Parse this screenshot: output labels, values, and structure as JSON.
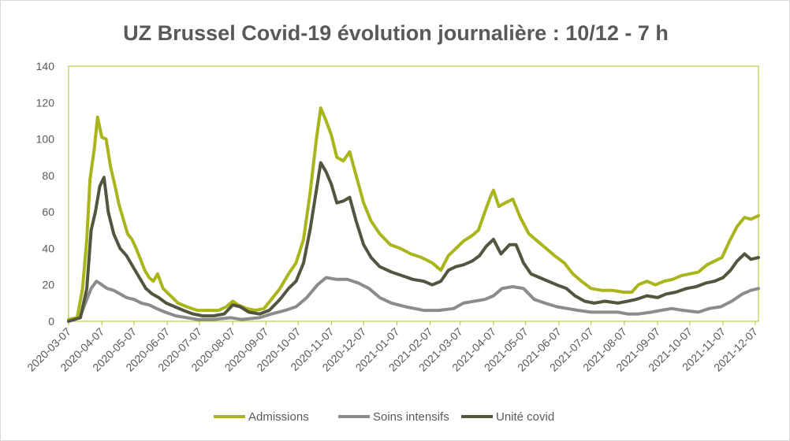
{
  "chart_data": {
    "type": "line",
    "title": "UZ Brussel Covid-19 évolution journalière : 10/12 - 7 h",
    "xlabel": "",
    "ylabel": "",
    "ylim": [
      0,
      140
    ],
    "yticks": [
      "0",
      "20",
      "40",
      "60",
      "80",
      "100",
      "120",
      "140"
    ],
    "x_range": [
      "2020-03-07",
      "2021-12-10"
    ],
    "x_tick_labels": [
      "2020-03-07",
      "2020-04-07",
      "2020-05-07",
      "2020-06-07",
      "2020-07-07",
      "2020-08-07",
      "2020-09-07",
      "2020-10-07",
      "2020-11-07",
      "2020-12-07",
      "2021-01-07",
      "2021-02-07",
      "2021-03-07",
      "2021-04-07",
      "2021-05-07",
      "2021-06-07",
      "2021-07-07",
      "2021-08-07",
      "2021-09-07",
      "2021-10-07",
      "2021-11-07",
      "2021-12-07"
    ],
    "grid": false,
    "legend_position": "bottom",
    "series": [
      {
        "name": "Admissions",
        "color": "#a9b51a",
        "points": [
          [
            "2020-03-07",
            1
          ],
          [
            "2020-03-15",
            2
          ],
          [
            "2020-03-20",
            18
          ],
          [
            "2020-03-24",
            45
          ],
          [
            "2020-03-27",
            78
          ],
          [
            "2020-03-31",
            95
          ],
          [
            "2020-04-03",
            112
          ],
          [
            "2020-04-07",
            101
          ],
          [
            "2020-04-11",
            100
          ],
          [
            "2020-04-15",
            85
          ],
          [
            "2020-04-19",
            75
          ],
          [
            "2020-04-23",
            64
          ],
          [
            "2020-04-27",
            56
          ],
          [
            "2020-05-01",
            48
          ],
          [
            "2020-05-05",
            45
          ],
          [
            "2020-05-09",
            40
          ],
          [
            "2020-05-13",
            34
          ],
          [
            "2020-05-17",
            28
          ],
          [
            "2020-05-21",
            24
          ],
          [
            "2020-05-25",
            22
          ],
          [
            "2020-05-29",
            26
          ],
          [
            "2020-06-03",
            18
          ],
          [
            "2020-06-10",
            14
          ],
          [
            "2020-06-17",
            10
          ],
          [
            "2020-06-25",
            8
          ],
          [
            "2020-07-05",
            6
          ],
          [
            "2020-07-15",
            6
          ],
          [
            "2020-07-25",
            6
          ],
          [
            "2020-08-01",
            8
          ],
          [
            "2020-08-07",
            11
          ],
          [
            "2020-08-12",
            9
          ],
          [
            "2020-08-20",
            7
          ],
          [
            "2020-08-28",
            6
          ],
          [
            "2020-09-05",
            7
          ],
          [
            "2020-09-12",
            12
          ],
          [
            "2020-09-20",
            18
          ],
          [
            "2020-09-28",
            26
          ],
          [
            "2020-10-05",
            32
          ],
          [
            "2020-10-12",
            45
          ],
          [
            "2020-10-18",
            70
          ],
          [
            "2020-10-24",
            100
          ],
          [
            "2020-10-28",
            117
          ],
          [
            "2020-11-02",
            110
          ],
          [
            "2020-11-07",
            102
          ],
          [
            "2020-11-12",
            90
          ],
          [
            "2020-11-18",
            88
          ],
          [
            "2020-11-24",
            93
          ],
          [
            "2020-11-30",
            80
          ],
          [
            "2020-12-07",
            65
          ],
          [
            "2020-12-14",
            55
          ],
          [
            "2020-12-22",
            48
          ],
          [
            "2021-01-01",
            42
          ],
          [
            "2021-01-10",
            40
          ],
          [
            "2021-01-20",
            37
          ],
          [
            "2021-01-30",
            35
          ],
          [
            "2021-02-09",
            32
          ],
          [
            "2021-02-17",
            28
          ],
          [
            "2021-02-24",
            36
          ],
          [
            "2021-03-03",
            40
          ],
          [
            "2021-03-10",
            44
          ],
          [
            "2021-03-18",
            47
          ],
          [
            "2021-03-24",
            50
          ],
          [
            "2021-03-30",
            60
          ],
          [
            "2021-04-04",
            68
          ],
          [
            "2021-04-07",
            72
          ],
          [
            "2021-04-12",
            63
          ],
          [
            "2021-04-18",
            65
          ],
          [
            "2021-04-25",
            67
          ],
          [
            "2021-05-02",
            57
          ],
          [
            "2021-05-10",
            48
          ],
          [
            "2021-05-18",
            44
          ],
          [
            "2021-05-26",
            40
          ],
          [
            "2021-06-03",
            36
          ],
          [
            "2021-06-12",
            32
          ],
          [
            "2021-06-20",
            26
          ],
          [
            "2021-06-28",
            22
          ],
          [
            "2021-07-07",
            18
          ],
          [
            "2021-07-17",
            17
          ],
          [
            "2021-07-27",
            17
          ],
          [
            "2021-08-06",
            16
          ],
          [
            "2021-08-14",
            16
          ],
          [
            "2021-08-20",
            20
          ],
          [
            "2021-08-28",
            22
          ],
          [
            "2021-09-05",
            20
          ],
          [
            "2021-09-13",
            22
          ],
          [
            "2021-09-21",
            23
          ],
          [
            "2021-09-29",
            25
          ],
          [
            "2021-10-07",
            26
          ],
          [
            "2021-10-15",
            27
          ],
          [
            "2021-10-23",
            31
          ],
          [
            "2021-10-30",
            33
          ],
          [
            "2021-11-06",
            35
          ],
          [
            "2021-11-13",
            44
          ],
          [
            "2021-11-20",
            52
          ],
          [
            "2021-11-27",
            57
          ],
          [
            "2021-12-03",
            56
          ],
          [
            "2021-12-10",
            58
          ]
        ]
      },
      {
        "name": "Soins intensifs",
        "color": "#8c8c8c",
        "points": [
          [
            "2020-03-07",
            0
          ],
          [
            "2020-03-18",
            3
          ],
          [
            "2020-03-24",
            12
          ],
          [
            "2020-03-28",
            18
          ],
          [
            "2020-04-02",
            22
          ],
          [
            "2020-04-07",
            20
          ],
          [
            "2020-04-12",
            18
          ],
          [
            "2020-04-18",
            17
          ],
          [
            "2020-04-24",
            15
          ],
          [
            "2020-04-30",
            13
          ],
          [
            "2020-05-07",
            12
          ],
          [
            "2020-05-14",
            10
          ],
          [
            "2020-05-21",
            9
          ],
          [
            "2020-05-28",
            7
          ],
          [
            "2020-06-05",
            5
          ],
          [
            "2020-06-15",
            3
          ],
          [
            "2020-06-25",
            2
          ],
          [
            "2020-07-05",
            1
          ],
          [
            "2020-07-20",
            1
          ],
          [
            "2020-08-05",
            2
          ],
          [
            "2020-08-15",
            1
          ],
          [
            "2020-09-01",
            2
          ],
          [
            "2020-09-12",
            4
          ],
          [
            "2020-09-25",
            6
          ],
          [
            "2020-10-05",
            8
          ],
          [
            "2020-10-15",
            13
          ],
          [
            "2020-10-25",
            20
          ],
          [
            "2020-11-02",
            24
          ],
          [
            "2020-11-12",
            23
          ],
          [
            "2020-11-22",
            23
          ],
          [
            "2020-12-02",
            21
          ],
          [
            "2020-12-12",
            18
          ],
          [
            "2020-12-22",
            13
          ],
          [
            "2021-01-02",
            10
          ],
          [
            "2021-01-15",
            8
          ],
          [
            "2021-02-01",
            6
          ],
          [
            "2021-02-15",
            6
          ],
          [
            "2021-03-01",
            7
          ],
          [
            "2021-03-10",
            10
          ],
          [
            "2021-03-20",
            11
          ],
          [
            "2021-03-30",
            12
          ],
          [
            "2021-04-07",
            14
          ],
          [
            "2021-04-15",
            18
          ],
          [
            "2021-04-25",
            19
          ],
          [
            "2021-05-05",
            18
          ],
          [
            "2021-05-15",
            12
          ],
          [
            "2021-05-25",
            10
          ],
          [
            "2021-06-05",
            8
          ],
          [
            "2021-06-15",
            7
          ],
          [
            "2021-06-25",
            6
          ],
          [
            "2021-07-07",
            5
          ],
          [
            "2021-07-20",
            5
          ],
          [
            "2021-08-01",
            5
          ],
          [
            "2021-08-10",
            4
          ],
          [
            "2021-08-20",
            4
          ],
          [
            "2021-09-01",
            5
          ],
          [
            "2021-09-10",
            6
          ],
          [
            "2021-09-20",
            7
          ],
          [
            "2021-10-01",
            6
          ],
          [
            "2021-10-15",
            5
          ],
          [
            "2021-10-25",
            7
          ],
          [
            "2021-11-05",
            8
          ],
          [
            "2021-11-15",
            11
          ],
          [
            "2021-11-25",
            15
          ],
          [
            "2021-12-03",
            17
          ],
          [
            "2021-12-10",
            18
          ]
        ]
      },
      {
        "name": "Unité covid",
        "color": "#53563e",
        "points": [
          [
            "2020-03-07",
            0
          ],
          [
            "2020-03-18",
            2
          ],
          [
            "2020-03-24",
            18
          ],
          [
            "2020-03-28",
            50
          ],
          [
            "2020-04-01",
            60
          ],
          [
            "2020-04-05",
            74
          ],
          [
            "2020-04-09",
            79
          ],
          [
            "2020-04-13",
            60
          ],
          [
            "2020-04-18",
            48
          ],
          [
            "2020-04-24",
            40
          ],
          [
            "2020-04-30",
            36
          ],
          [
            "2020-05-06",
            30
          ],
          [
            "2020-05-12",
            24
          ],
          [
            "2020-05-18",
            18
          ],
          [
            "2020-05-24",
            15
          ],
          [
            "2020-05-30",
            13
          ],
          [
            "2020-06-06",
            10
          ],
          [
            "2020-06-14",
            8
          ],
          [
            "2020-06-22",
            6
          ],
          [
            "2020-07-01",
            4
          ],
          [
            "2020-07-10",
            3
          ],
          [
            "2020-07-20",
            3
          ],
          [
            "2020-07-30",
            4
          ],
          [
            "2020-08-07",
            9
          ],
          [
            "2020-08-14",
            8
          ],
          [
            "2020-08-22",
            5
          ],
          [
            "2020-09-01",
            4
          ],
          [
            "2020-09-10",
            6
          ],
          [
            "2020-09-20",
            12
          ],
          [
            "2020-09-28",
            18
          ],
          [
            "2020-10-05",
            22
          ],
          [
            "2020-10-12",
            32
          ],
          [
            "2020-10-18",
            50
          ],
          [
            "2020-10-24",
            72
          ],
          [
            "2020-10-28",
            87
          ],
          [
            "2020-11-02",
            82
          ],
          [
            "2020-11-07",
            75
          ],
          [
            "2020-11-12",
            65
          ],
          [
            "2020-11-18",
            66
          ],
          [
            "2020-11-24",
            68
          ],
          [
            "2020-11-30",
            55
          ],
          [
            "2020-12-07",
            42
          ],
          [
            "2020-12-14",
            35
          ],
          [
            "2020-12-22",
            30
          ],
          [
            "2021-01-02",
            27
          ],
          [
            "2021-01-12",
            25
          ],
          [
            "2021-01-22",
            23
          ],
          [
            "2021-02-01",
            22
          ],
          [
            "2021-02-09",
            20
          ],
          [
            "2021-02-17",
            22
          ],
          [
            "2021-02-24",
            28
          ],
          [
            "2021-03-03",
            30
          ],
          [
            "2021-03-10",
            31
          ],
          [
            "2021-03-18",
            33
          ],
          [
            "2021-03-25",
            36
          ],
          [
            "2021-03-31",
            41
          ],
          [
            "2021-04-07",
            45
          ],
          [
            "2021-04-14",
            37
          ],
          [
            "2021-04-22",
            42
          ],
          [
            "2021-04-28",
            42
          ],
          [
            "2021-05-05",
            32
          ],
          [
            "2021-05-12",
            26
          ],
          [
            "2021-05-20",
            24
          ],
          [
            "2021-05-28",
            22
          ],
          [
            "2021-06-05",
            20
          ],
          [
            "2021-06-14",
            18
          ],
          [
            "2021-06-22",
            14
          ],
          [
            "2021-07-01",
            11
          ],
          [
            "2021-07-10",
            10
          ],
          [
            "2021-07-20",
            11
          ],
          [
            "2021-08-01",
            10
          ],
          [
            "2021-08-10",
            11
          ],
          [
            "2021-08-18",
            12
          ],
          [
            "2021-08-28",
            14
          ],
          [
            "2021-09-07",
            13
          ],
          [
            "2021-09-15",
            15
          ],
          [
            "2021-09-24",
            16
          ],
          [
            "2021-10-04",
            18
          ],
          [
            "2021-10-13",
            19
          ],
          [
            "2021-10-22",
            21
          ],
          [
            "2021-10-30",
            22
          ],
          [
            "2021-11-07",
            24
          ],
          [
            "2021-11-14",
            28
          ],
          [
            "2021-11-20",
            33
          ],
          [
            "2021-11-27",
            37
          ],
          [
            "2021-12-03",
            34
          ],
          [
            "2021-12-10",
            35
          ]
        ]
      }
    ]
  }
}
